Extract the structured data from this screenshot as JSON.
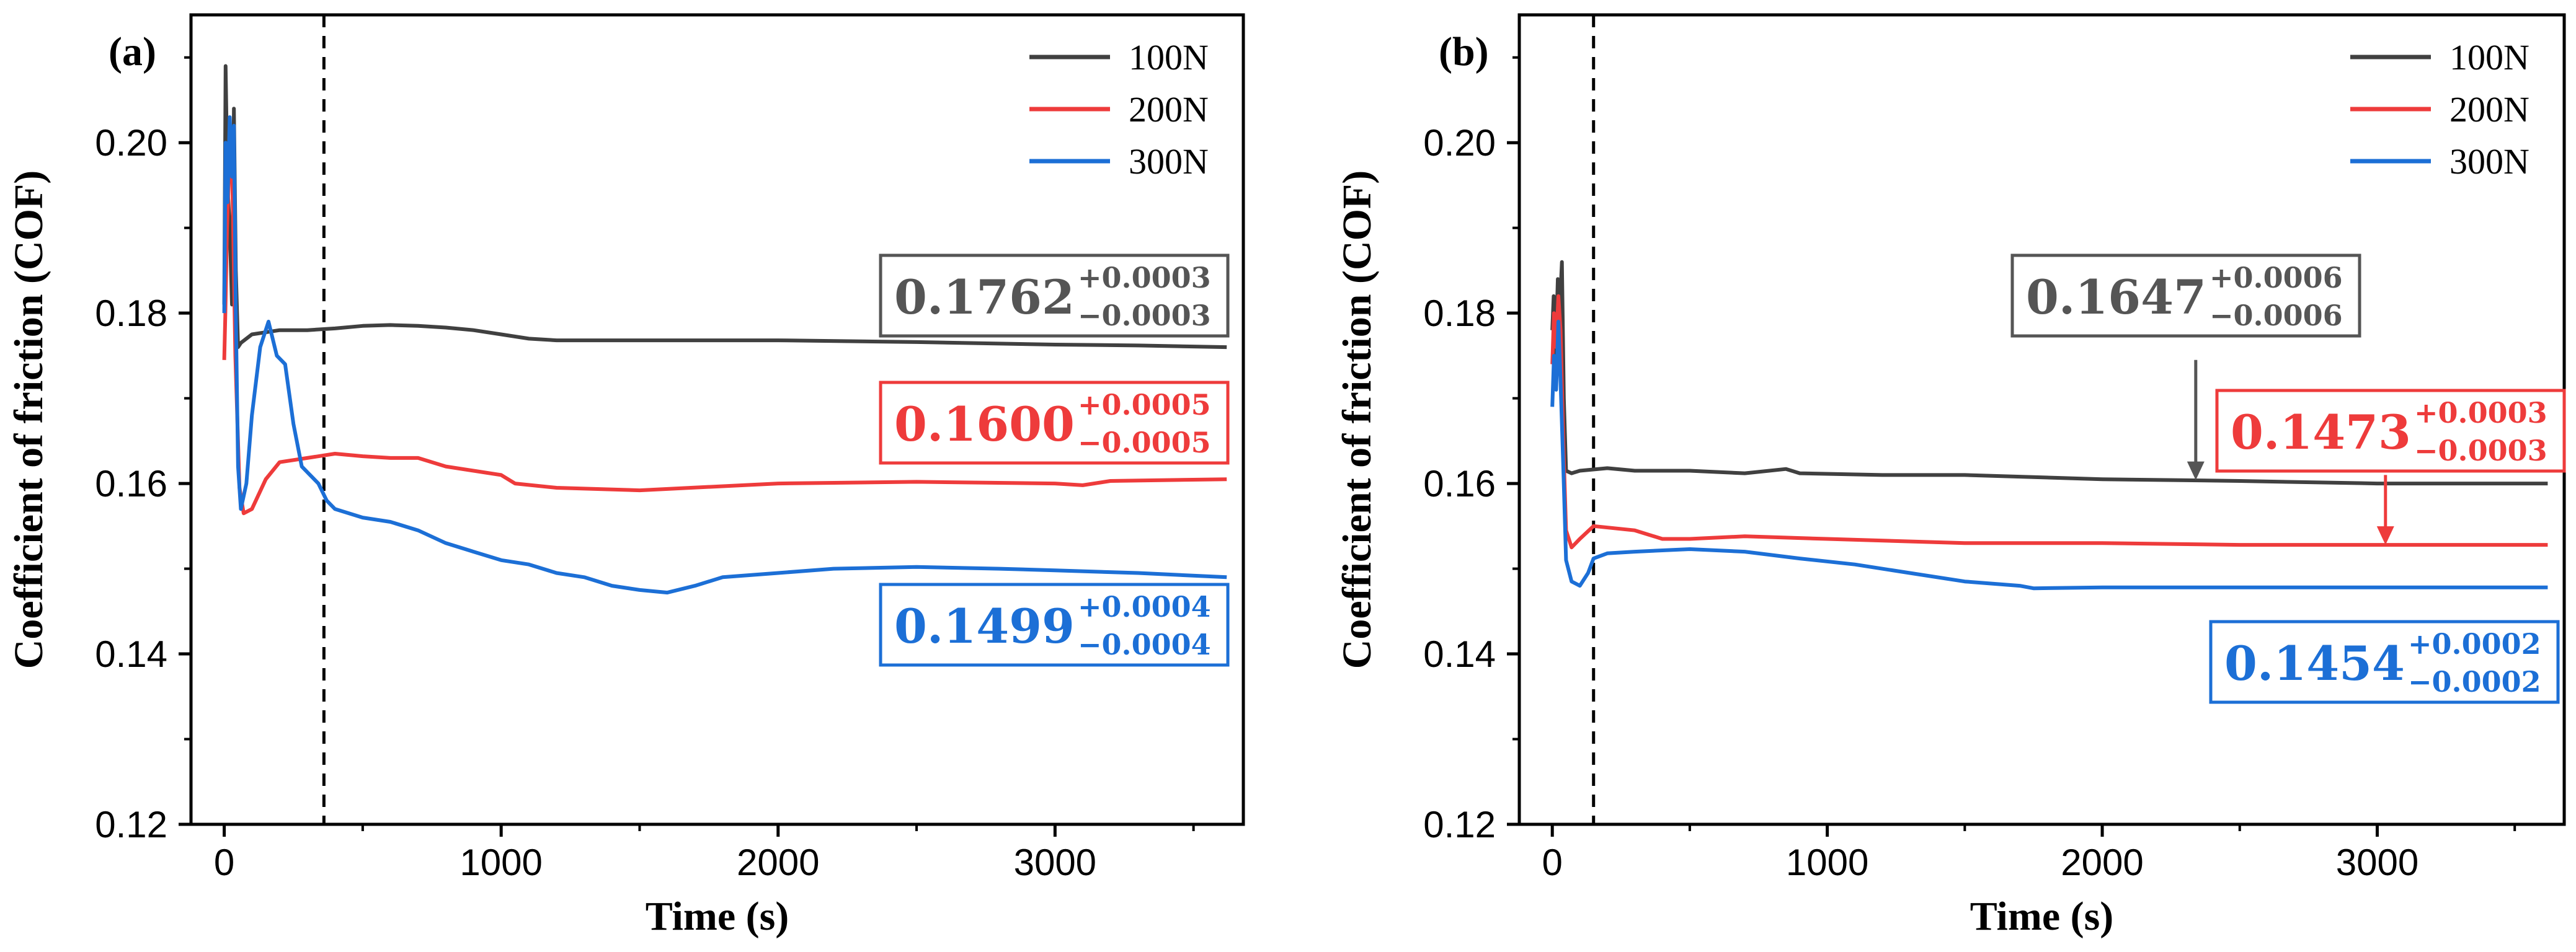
{
  "chart_data": [
    {
      "type": "line",
      "panel_label": "(a)",
      "xlabel": "Time (s)",
      "ylabel": "Coefficient of friction (COF)",
      "xlim": [
        -120,
        3680
      ],
      "ylim": [
        0.12,
        0.215
      ],
      "x_ticks": [
        0,
        1000,
        2000,
        3000
      ],
      "x_tick_labels": [
        "0",
        "1000",
        "2000",
        "3000"
      ],
      "y_ticks": [
        0.12,
        0.14,
        0.16,
        0.18,
        0.2
      ],
      "y_tick_labels": [
        "0.12",
        "0.14",
        "0.16",
        "0.18",
        "0.20"
      ],
      "legend_position": "top-right",
      "vline_x": 360,
      "series": [
        {
          "name": "100N",
          "color": "#404040",
          "points": [
            [
              0,
              0.181
            ],
            [
              5,
              0.209
            ],
            [
              12,
              0.195
            ],
            [
              20,
              0.19
            ],
            [
              28,
              0.181
            ],
            [
              35,
              0.204
            ],
            [
              42,
              0.185
            ],
            [
              50,
              0.176
            ],
            [
              60,
              0.1765
            ],
            [
              100,
              0.1775
            ],
            [
              200,
              0.178
            ],
            [
              300,
              0.178
            ],
            [
              400,
              0.1782
            ],
            [
              500,
              0.1785
            ],
            [
              600,
              0.1786
            ],
            [
              700,
              0.1785
            ],
            [
              800,
              0.1783
            ],
            [
              900,
              0.178
            ],
            [
              1000,
              0.1775
            ],
            [
              1100,
              0.177
            ],
            [
              1200,
              0.1768
            ],
            [
              1500,
              0.1768
            ],
            [
              2000,
              0.1768
            ],
            [
              2500,
              0.1766
            ],
            [
              3000,
              0.1763
            ],
            [
              3300,
              0.1762
            ],
            [
              3620,
              0.176
            ]
          ]
        },
        {
          "name": "200N",
          "color": "#ee3b3b",
          "points": [
            [
              0,
              0.1745
            ],
            [
              4,
              0.18
            ],
            [
              10,
              0.19
            ],
            [
              18,
              0.197
            ],
            [
              28,
              0.198
            ],
            [
              40,
              0.175
            ],
            [
              55,
              0.1595
            ],
            [
              70,
              0.1565
            ],
            [
              100,
              0.157
            ],
            [
              150,
              0.1605
            ],
            [
              200,
              0.1625
            ],
            [
              300,
              0.163
            ],
            [
              400,
              0.1635
            ],
            [
              500,
              0.1632
            ],
            [
              600,
              0.163
            ],
            [
              700,
              0.163
            ],
            [
              800,
              0.162
            ],
            [
              900,
              0.1615
            ],
            [
              1000,
              0.161
            ],
            [
              1050,
              0.16
            ],
            [
              1200,
              0.1595
            ],
            [
              1500,
              0.1592
            ],
            [
              2000,
              0.16
            ],
            [
              2500,
              0.1602
            ],
            [
              3000,
              0.16
            ],
            [
              3100,
              0.1598
            ],
            [
              3200,
              0.1603
            ],
            [
              3620,
              0.1605
            ]
          ]
        },
        {
          "name": "300N",
          "color": "#1c6fd6",
          "points": [
            [
              0,
              0.18
            ],
            [
              5,
              0.2
            ],
            [
              12,
              0.193
            ],
            [
              20,
              0.203
            ],
            [
              28,
              0.196
            ],
            [
              35,
              0.202
            ],
            [
              42,
              0.18
            ],
            [
              50,
              0.162
            ],
            [
              60,
              0.157
            ],
            [
              80,
              0.16
            ],
            [
              100,
              0.168
            ],
            [
              130,
              0.176
            ],
            [
              160,
              0.179
            ],
            [
              190,
              0.175
            ],
            [
              220,
              0.174
            ],
            [
              250,
              0.167
            ],
            [
              280,
              0.162
            ],
            [
              310,
              0.161
            ],
            [
              340,
              0.16
            ],
            [
              370,
              0.158
            ],
            [
              400,
              0.157
            ],
            [
              500,
              0.156
            ],
            [
              600,
              0.1555
            ],
            [
              700,
              0.1545
            ],
            [
              800,
              0.153
            ],
            [
              900,
              0.152
            ],
            [
              1000,
              0.151
            ],
            [
              1100,
              0.1505
            ],
            [
              1200,
              0.1495
            ],
            [
              1300,
              0.149
            ],
            [
              1400,
              0.148
            ],
            [
              1500,
              0.1475
            ],
            [
              1600,
              0.1472
            ],
            [
              1700,
              0.148
            ],
            [
              1800,
              0.149
            ],
            [
              2000,
              0.1495
            ],
            [
              2200,
              0.15
            ],
            [
              2500,
              0.1502
            ],
            [
              2800,
              0.15
            ],
            [
              3000,
              0.1498
            ],
            [
              3300,
              0.1495
            ],
            [
              3620,
              0.149
            ]
          ]
        }
      ],
      "annotations": [
        {
          "main": "0.1762",
          "sup": "+0.0003",
          "sub": "−0.0003",
          "color": "#555555"
        },
        {
          "main": "0.1600",
          "sup": "+0.0005",
          "sub": "−0.0005",
          "color": "#ee3b3b"
        },
        {
          "main": "0.1499",
          "sup": "+0.0004",
          "sub": "−0.0004",
          "color": "#1c6fd6"
        }
      ],
      "arrows": []
    },
    {
      "type": "line",
      "panel_label": "(b)",
      "xlabel": "Time (s)",
      "ylabel": "Coefficient of friction (COF)",
      "xlim": [
        -120,
        3680
      ],
      "ylim": [
        0.12,
        0.215
      ],
      "x_ticks": [
        0,
        1000,
        2000,
        3000
      ],
      "x_tick_labels": [
        "0",
        "1000",
        "2000",
        "3000"
      ],
      "y_ticks": [
        0.12,
        0.14,
        0.16,
        0.18,
        0.2
      ],
      "y_tick_labels": [
        "0.12",
        "0.14",
        "0.16",
        "0.18",
        "0.20"
      ],
      "legend_position": "top-right",
      "vline_x": 150,
      "series": [
        {
          "name": "100N",
          "color": "#404040",
          "points": [
            [
              0,
              0.178
            ],
            [
              5,
              0.182
            ],
            [
              12,
              0.175
            ],
            [
              20,
              0.184
            ],
            [
              28,
              0.181
            ],
            [
              35,
              0.186
            ],
            [
              42,
              0.17
            ],
            [
              50,
              0.1615
            ],
            [
              70,
              0.1612
            ],
            [
              100,
              0.1615
            ],
            [
              200,
              0.1618
            ],
            [
              300,
              0.1615
            ],
            [
              500,
              0.1615
            ],
            [
              700,
              0.1612
            ],
            [
              850,
              0.1617
            ],
            [
              900,
              0.1612
            ],
            [
              1200,
              0.161
            ],
            [
              1500,
              0.161
            ],
            [
              2000,
              0.1605
            ],
            [
              2500,
              0.1603
            ],
            [
              3000,
              0.16
            ],
            [
              3300,
              0.16
            ],
            [
              3620,
              0.16
            ]
          ]
        },
        {
          "name": "200N",
          "color": "#ee3b3b",
          "points": [
            [
              0,
              0.174
            ],
            [
              6,
              0.18
            ],
            [
              14,
              0.176
            ],
            [
              22,
              0.182
            ],
            [
              30,
              0.178
            ],
            [
              40,
              0.165
            ],
            [
              50,
              0.1545
            ],
            [
              70,
              0.1525
            ],
            [
              100,
              0.1535
            ],
            [
              150,
              0.155
            ],
            [
              300,
              0.1545
            ],
            [
              400,
              0.1535
            ],
            [
              500,
              0.1535
            ],
            [
              700,
              0.1538
            ],
            [
              1000,
              0.1535
            ],
            [
              1500,
              0.153
            ],
            [
              2000,
              0.153
            ],
            [
              2500,
              0.1528
            ],
            [
              3000,
              0.1528
            ],
            [
              3620,
              0.1528
            ]
          ]
        },
        {
          "name": "300N",
          "color": "#1c6fd6",
          "points": [
            [
              0,
              0.169
            ],
            [
              6,
              0.175
            ],
            [
              14,
              0.171
            ],
            [
              22,
              0.179
            ],
            [
              30,
              0.172
            ],
            [
              40,
              0.162
            ],
            [
              50,
              0.151
            ],
            [
              70,
              0.1485
            ],
            [
              100,
              0.148
            ],
            [
              130,
              0.1495
            ],
            [
              150,
              0.1512
            ],
            [
              200,
              0.1518
            ],
            [
              300,
              0.152
            ],
            [
              500,
              0.1523
            ],
            [
              700,
              0.152
            ],
            [
              900,
              0.1512
            ],
            [
              1100,
              0.1505
            ],
            [
              1300,
              0.1495
            ],
            [
              1500,
              0.1485
            ],
            [
              1700,
              0.148
            ],
            [
              1750,
              0.1477
            ],
            [
              2000,
              0.1478
            ],
            [
              2500,
              0.1478
            ],
            [
              3000,
              0.1478
            ],
            [
              3620,
              0.1478
            ]
          ]
        }
      ],
      "annotations": [
        {
          "main": "0.1647",
          "sup": "+0.0006",
          "sub": "−0.0006",
          "color": "#555555"
        },
        {
          "main": "0.1473",
          "sup": "+0.0003",
          "sub": "−0.0003",
          "color": "#ee3b3b"
        },
        {
          "main": "0.1454",
          "sup": "+0.0002",
          "sub": "−0.0002",
          "color": "#1c6fd6"
        }
      ],
      "arrows": [
        {
          "color": "#555555",
          "x": 2340,
          "y_from": 0.1745,
          "y_to": 0.1604
        },
        {
          "color": "#ee3b3b",
          "x": 3030,
          "y_from": 0.161,
          "y_to": 0.1528
        }
      ]
    }
  ]
}
